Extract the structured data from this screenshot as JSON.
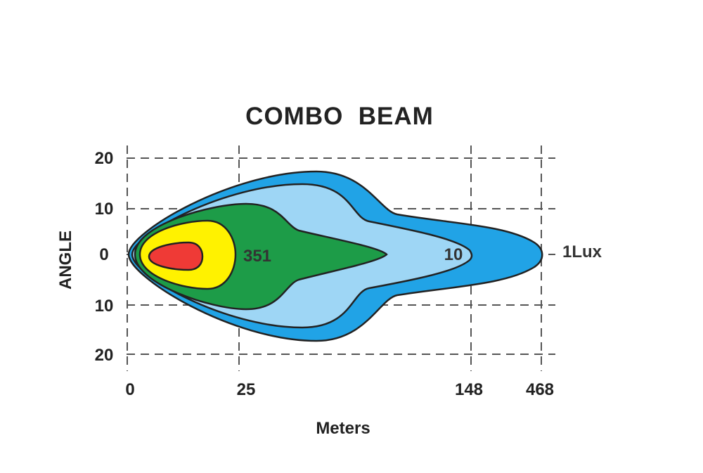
{
  "chart_data": {
    "type": "area",
    "title": "COMBO  BEAM",
    "xlabel": "Meters",
    "ylabel": "ANGLE",
    "x_ticks": [
      "0",
      "25",
      "148",
      "468"
    ],
    "y_ticks": [
      "20",
      "10",
      "0",
      "10",
      "20"
    ],
    "grid": true,
    "zones": [
      {
        "label": "1Lux",
        "reach_m": 468,
        "color": "#21a3e6"
      },
      {
        "label": "10",
        "reach_m": 148,
        "color": "#9ed6f5"
      },
      {
        "label": "",
        "color": "#1d9c48"
      },
      {
        "label": "351",
        "color": "#fff200"
      },
      {
        "label": "",
        "color": "#ef3a36"
      }
    ]
  }
}
